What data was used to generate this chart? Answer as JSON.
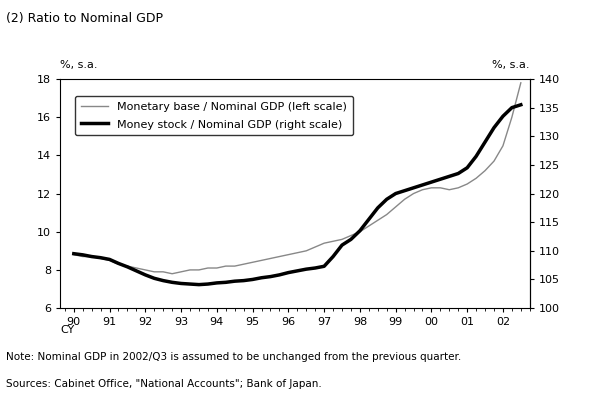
{
  "title": "(2) Ratio to Nominal GDP",
  "left_ylabel": "%, s.a.",
  "right_ylabel": "%, s.a.",
  "left_ylim": [
    6,
    18
  ],
  "right_ylim": [
    100,
    140
  ],
  "left_yticks": [
    6,
    8,
    10,
    12,
    14,
    16,
    18
  ],
  "right_yticks": [
    100,
    105,
    110,
    115,
    120,
    125,
    130,
    135,
    140
  ],
  "note": "Note: Nominal GDP in 2002/Q3 is assumed to be unchanged from the previous quarter.",
  "sources": "Sources: Cabinet Office, \"National Accounts\"; Bank of Japan.",
  "legend1": "Monetary base / Nominal GDP (left scale)",
  "legend2": "Money stock / Nominal GDP (right scale)",
  "thin_line_color": "#888888",
  "thick_line_color": "#000000",
  "monetary_base": {
    "x": [
      1990.0,
      1990.25,
      1990.5,
      1990.75,
      1991.0,
      1991.25,
      1991.5,
      1991.75,
      1992.0,
      1992.25,
      1992.5,
      1992.75,
      1993.0,
      1993.25,
      1993.5,
      1993.75,
      1994.0,
      1994.25,
      1994.5,
      1994.75,
      1995.0,
      1995.25,
      1995.5,
      1995.75,
      1996.0,
      1996.25,
      1996.5,
      1996.75,
      1997.0,
      1997.25,
      1997.5,
      1997.75,
      1998.0,
      1998.25,
      1998.5,
      1998.75,
      1999.0,
      1999.25,
      1999.5,
      1999.75,
      2000.0,
      2000.25,
      2000.5,
      2000.75,
      2001.0,
      2001.25,
      2001.5,
      2001.75,
      2002.0,
      2002.25,
      2002.5
    ],
    "y": [
      8.8,
      8.7,
      8.7,
      8.6,
      8.5,
      8.3,
      8.2,
      8.1,
      8.0,
      7.9,
      7.9,
      7.8,
      7.9,
      8.0,
      8.0,
      8.1,
      8.1,
      8.2,
      8.2,
      8.3,
      8.4,
      8.5,
      8.6,
      8.7,
      8.8,
      8.9,
      9.0,
      9.2,
      9.4,
      9.5,
      9.6,
      9.8,
      10.0,
      10.3,
      10.6,
      10.9,
      11.3,
      11.7,
      12.0,
      12.2,
      12.3,
      12.3,
      12.2,
      12.3,
      12.5,
      12.8,
      13.2,
      13.7,
      14.5,
      16.0,
      17.8
    ]
  },
  "money_stock": {
    "x": [
      1990.0,
      1990.25,
      1990.5,
      1990.75,
      1991.0,
      1991.25,
      1991.5,
      1991.75,
      1992.0,
      1992.25,
      1992.5,
      1992.75,
      1993.0,
      1993.25,
      1993.5,
      1993.75,
      1994.0,
      1994.25,
      1994.5,
      1994.75,
      1995.0,
      1995.25,
      1995.5,
      1995.75,
      1996.0,
      1996.25,
      1996.5,
      1996.75,
      1997.0,
      1997.25,
      1997.5,
      1997.75,
      1998.0,
      1998.25,
      1998.5,
      1998.75,
      1999.0,
      1999.25,
      1999.5,
      1999.75,
      2000.0,
      2000.25,
      2000.5,
      2000.75,
      2001.0,
      2001.25,
      2001.5,
      2001.75,
      2002.0,
      2002.25,
      2002.5
    ],
    "y": [
      109.5,
      109.3,
      109.0,
      108.8,
      108.5,
      107.8,
      107.2,
      106.5,
      105.8,
      105.2,
      104.8,
      104.5,
      104.3,
      104.2,
      104.1,
      104.2,
      104.4,
      104.5,
      104.7,
      104.8,
      105.0,
      105.3,
      105.5,
      105.8,
      106.2,
      106.5,
      106.8,
      107.0,
      107.3,
      109.0,
      111.0,
      112.0,
      113.5,
      115.5,
      117.5,
      119.0,
      120.0,
      120.5,
      121.0,
      121.5,
      122.0,
      122.5,
      123.0,
      123.5,
      124.5,
      126.5,
      129.0,
      131.5,
      133.5,
      135.0,
      135.5
    ]
  }
}
